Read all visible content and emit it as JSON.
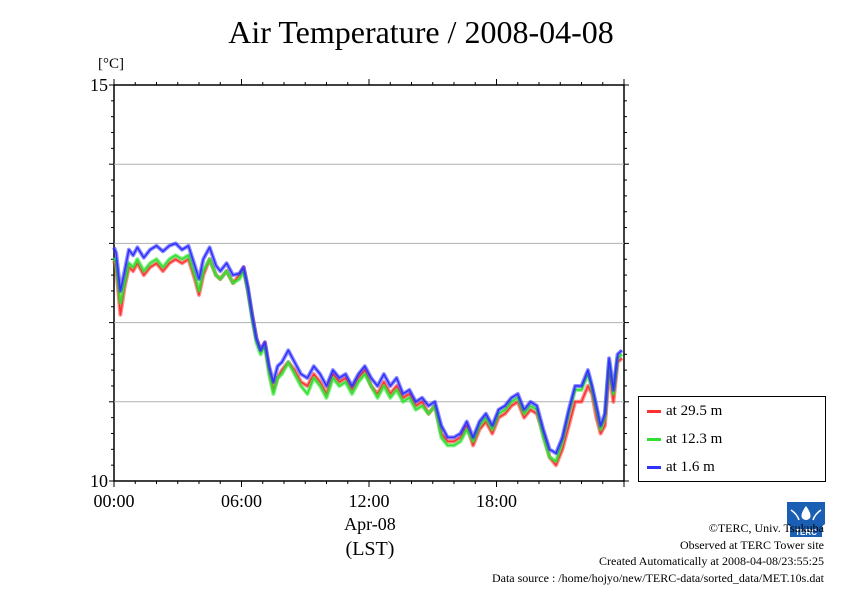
{
  "chart_data": {
    "type": "line",
    "title": "Air Temperature / 2008-04-08",
    "ylabel": "[°C]",
    "ylim": [
      10,
      15
    ],
    "yticks": [
      "15",
      "10"
    ],
    "xlim": [
      0,
      24
    ],
    "xticks": [
      {
        "hour": 0,
        "label": "00:00"
      },
      {
        "hour": 6,
        "label": "06:00"
      },
      {
        "hour": 12,
        "label": "12:00"
      },
      {
        "hour": 18,
        "label": "18:00"
      }
    ],
    "xlabel_date": "Apr-08",
    "xlabel_tz": "(LST)",
    "grid": true,
    "legend_position": "right",
    "x_hours": [
      0,
      0.1,
      0.3,
      0.5,
      0.7,
      0.9,
      1.1,
      1.4,
      1.7,
      2.0,
      2.3,
      2.6,
      2.9,
      3.2,
      3.5,
      3.8,
      4.0,
      4.2,
      4.5,
      4.8,
      5.0,
      5.3,
      5.6,
      5.9,
      6.1,
      6.3,
      6.5,
      6.7,
      6.9,
      7.1,
      7.3,
      7.5,
      7.7,
      7.9,
      8.2,
      8.5,
      8.8,
      9.1,
      9.4,
      9.7,
      10.0,
      10.3,
      10.6,
      10.9,
      11.2,
      11.5,
      11.8,
      12.1,
      12.4,
      12.7,
      13.0,
      13.3,
      13.6,
      13.9,
      14.2,
      14.5,
      14.8,
      15.1,
      15.4,
      15.7,
      16.0,
      16.3,
      16.6,
      16.9,
      17.2,
      17.5,
      17.8,
      18.1,
      18.4,
      18.7,
      19.0,
      19.3,
      19.6,
      19.9,
      20.2,
      20.5,
      20.8,
      21.1,
      21.4,
      21.7,
      22.0,
      22.3,
      22.5,
      22.7,
      22.9,
      23.1,
      23.3,
      23.5,
      23.7,
      23.9
    ],
    "series": [
      {
        "name": "at 29.5 m",
        "color": "#ff3030",
        "values": [
          12.78,
          12.7,
          12.1,
          12.45,
          12.7,
          12.65,
          12.75,
          12.6,
          12.7,
          12.75,
          12.65,
          12.75,
          12.8,
          12.75,
          12.8,
          12.55,
          12.35,
          12.6,
          12.8,
          12.6,
          12.55,
          12.65,
          12.5,
          12.6,
          12.7,
          12.4,
          12.1,
          11.8,
          11.65,
          11.75,
          11.4,
          11.15,
          11.3,
          11.4,
          11.5,
          11.4,
          11.25,
          11.2,
          11.35,
          11.25,
          11.1,
          11.35,
          11.25,
          11.3,
          11.15,
          11.3,
          11.4,
          11.2,
          11.1,
          11.25,
          11.1,
          11.2,
          11.05,
          11.1,
          10.95,
          11.0,
          10.85,
          10.95,
          10.6,
          10.5,
          10.5,
          10.55,
          10.7,
          10.45,
          10.65,
          10.75,
          10.6,
          10.8,
          10.85,
          10.95,
          11.0,
          10.8,
          10.9,
          10.85,
          10.6,
          10.3,
          10.2,
          10.4,
          10.7,
          11.0,
          11.0,
          11.2,
          11.1,
          10.8,
          10.6,
          10.7,
          11.4,
          11.0,
          11.5,
          11.55
        ]
      },
      {
        "name": "at 12.3 m",
        "color": "#30e030",
        "values": [
          12.82,
          12.75,
          12.25,
          12.5,
          12.75,
          12.7,
          12.8,
          12.65,
          12.75,
          12.8,
          12.7,
          12.8,
          12.85,
          12.8,
          12.85,
          12.6,
          12.4,
          12.65,
          12.8,
          12.6,
          12.55,
          12.65,
          12.5,
          12.55,
          12.65,
          12.4,
          12.05,
          11.75,
          11.6,
          11.7,
          11.35,
          11.1,
          11.3,
          11.35,
          11.5,
          11.35,
          11.2,
          11.1,
          11.3,
          11.2,
          11.05,
          11.3,
          11.2,
          11.25,
          11.1,
          11.25,
          11.35,
          11.2,
          11.05,
          11.2,
          11.05,
          11.15,
          11.0,
          11.05,
          10.9,
          10.95,
          10.85,
          10.95,
          10.55,
          10.45,
          10.45,
          10.5,
          10.65,
          10.5,
          10.7,
          10.8,
          10.65,
          10.85,
          10.9,
          11.0,
          11.05,
          10.85,
          10.95,
          10.9,
          10.55,
          10.3,
          10.25,
          10.5,
          10.85,
          11.15,
          11.15,
          11.35,
          11.15,
          10.9,
          10.65,
          10.8,
          11.5,
          11.1,
          11.55,
          11.6
        ]
      },
      {
        "name": "at 1.6 m",
        "color": "#3030ff",
        "values": [
          12.95,
          12.88,
          12.4,
          12.65,
          12.92,
          12.85,
          12.95,
          12.82,
          12.92,
          12.97,
          12.9,
          12.97,
          13.0,
          12.92,
          12.97,
          12.72,
          12.55,
          12.8,
          12.95,
          12.72,
          12.65,
          12.75,
          12.6,
          12.62,
          12.7,
          12.45,
          12.1,
          11.8,
          11.65,
          11.75,
          11.45,
          11.25,
          11.45,
          11.5,
          11.65,
          11.5,
          11.35,
          11.3,
          11.45,
          11.35,
          11.2,
          11.4,
          11.3,
          11.35,
          11.2,
          11.35,
          11.45,
          11.3,
          11.2,
          11.35,
          11.2,
          11.3,
          11.1,
          11.15,
          11.0,
          11.05,
          10.95,
          11.0,
          10.7,
          10.55,
          10.55,
          10.6,
          10.75,
          10.55,
          10.75,
          10.85,
          10.7,
          10.9,
          10.95,
          11.05,
          11.1,
          10.9,
          11.0,
          10.95,
          10.65,
          10.4,
          10.35,
          10.55,
          10.9,
          11.2,
          11.2,
          11.4,
          11.2,
          10.95,
          10.7,
          10.85,
          11.55,
          11.15,
          11.6,
          11.65
        ]
      }
    ]
  },
  "credits": {
    "line1": "©TERC, Univ. Tsukuba",
    "line2": "Observed at TERC Tower site",
    "line3": "Created Automatically at 2008-04-08/23:55:25",
    "line4": "Data source : /home/hojyo/new/TERC-data/sorted_data/MET.10s.dat"
  },
  "logo": {
    "name": "terc-logo-icon",
    "text": "TERC",
    "color": "#1a5fb4"
  }
}
